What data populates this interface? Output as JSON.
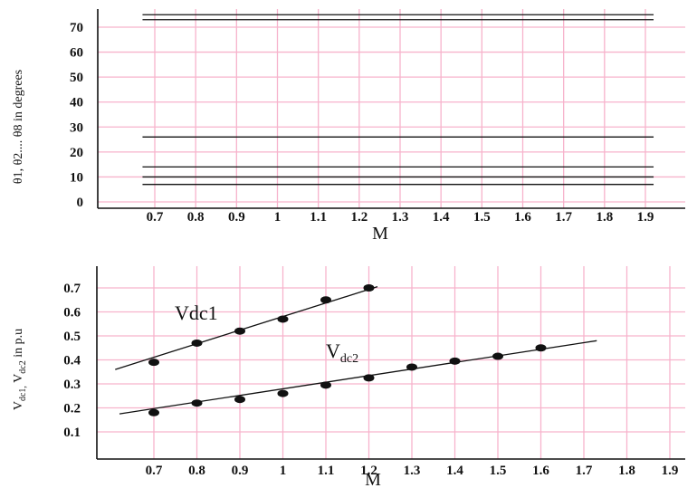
{
  "chart_data": [
    {
      "type": "line",
      "title": "",
      "xlabel": "M",
      "ylabel": "θ1, θ2.... θ8 in degrees",
      "xlim": [
        0.6,
        1.93
      ],
      "ylim": [
        0,
        78
      ],
      "x_ticks": [
        "0.7",
        "0.8",
        "0.9",
        "1",
        "1.1",
        "1.2",
        "1.3",
        "1.4",
        "1.5",
        "1.6",
        "1.7",
        "1.8",
        "1.9"
      ],
      "x_tick_values": [
        0.7,
        0.8,
        0.9,
        1.0,
        1.1,
        1.2,
        1.3,
        1.4,
        1.5,
        1.6,
        1.7,
        1.8,
        1.9
      ],
      "y_ticks": [
        "0",
        "10",
        "20",
        "30",
        "40",
        "50",
        "60",
        "70"
      ],
      "y_tick_values": [
        0,
        10,
        20,
        30,
        40,
        50,
        60,
        70
      ],
      "grid": true,
      "series": [
        {
          "x": [
            0.67,
            1.92
          ],
          "values": [
            75,
            75
          ]
        },
        {
          "x": [
            0.67,
            1.92
          ],
          "values": [
            73,
            73
          ]
        },
        {
          "x": [
            0.67,
            1.92
          ],
          "values": [
            26,
            26
          ]
        },
        {
          "x": [
            0.67,
            1.92
          ],
          "values": [
            14,
            14
          ]
        },
        {
          "x": [
            0.67,
            1.92
          ],
          "values": [
            10,
            10
          ]
        },
        {
          "x": [
            0.67,
            1.92
          ],
          "values": [
            7,
            7
          ]
        }
      ]
    },
    {
      "type": "scatter",
      "title": "",
      "xlabel": "M",
      "ylabel": "V",
      "ylabel_sub": "dc1,",
      "ylabel_mid": " V",
      "ylabel_sub2": "dc2",
      "ylabel_end": " in p.u",
      "xlim": [
        0.6,
        1.93
      ],
      "ylim": [
        0,
        0.76
      ],
      "x_ticks": [
        "0.7",
        "0.8",
        "0.9",
        "1",
        "1.1",
        "1.2",
        "1.3",
        "1.4",
        "1.5",
        "1.6",
        "1.7",
        "1.8",
        "1.9"
      ],
      "x_tick_values": [
        0.7,
        0.8,
        0.9,
        1.0,
        1.1,
        1.2,
        1.3,
        1.4,
        1.5,
        1.6,
        1.7,
        1.8,
        1.9
      ],
      "y_ticks": [
        "0.1",
        "0.2",
        "0.3",
        "0.4",
        "0.5",
        "0.6",
        "0.7"
      ],
      "y_tick_values": [
        0.1,
        0.2,
        0.3,
        0.4,
        0.5,
        0.6,
        0.7
      ],
      "grid": true,
      "annotations": [
        {
          "text": "Vdc1"
        },
        {
          "text": "V",
          "sub": "dc2"
        }
      ],
      "series": [
        {
          "x": [
            0.7,
            0.8,
            0.9,
            1.0,
            1.1,
            1.2
          ],
          "values": [
            0.39,
            0.47,
            0.52,
            0.57,
            0.65,
            0.7
          ],
          "fit": {
            "x": [
              0.61,
              1.22
            ],
            "values": [
              0.36,
              0.705
            ]
          }
        },
        {
          "x": [
            0.7,
            0.8,
            0.9,
            1.0,
            1.1,
            1.2,
            1.3,
            1.4,
            1.5,
            1.6
          ],
          "values": [
            0.18,
            0.22,
            0.235,
            0.26,
            0.295,
            0.325,
            0.37,
            0.395,
            0.415,
            0.45
          ],
          "fit": {
            "x": [
              0.62,
              1.73
            ],
            "values": [
              0.175,
              0.48
            ]
          }
        }
      ]
    }
  ]
}
